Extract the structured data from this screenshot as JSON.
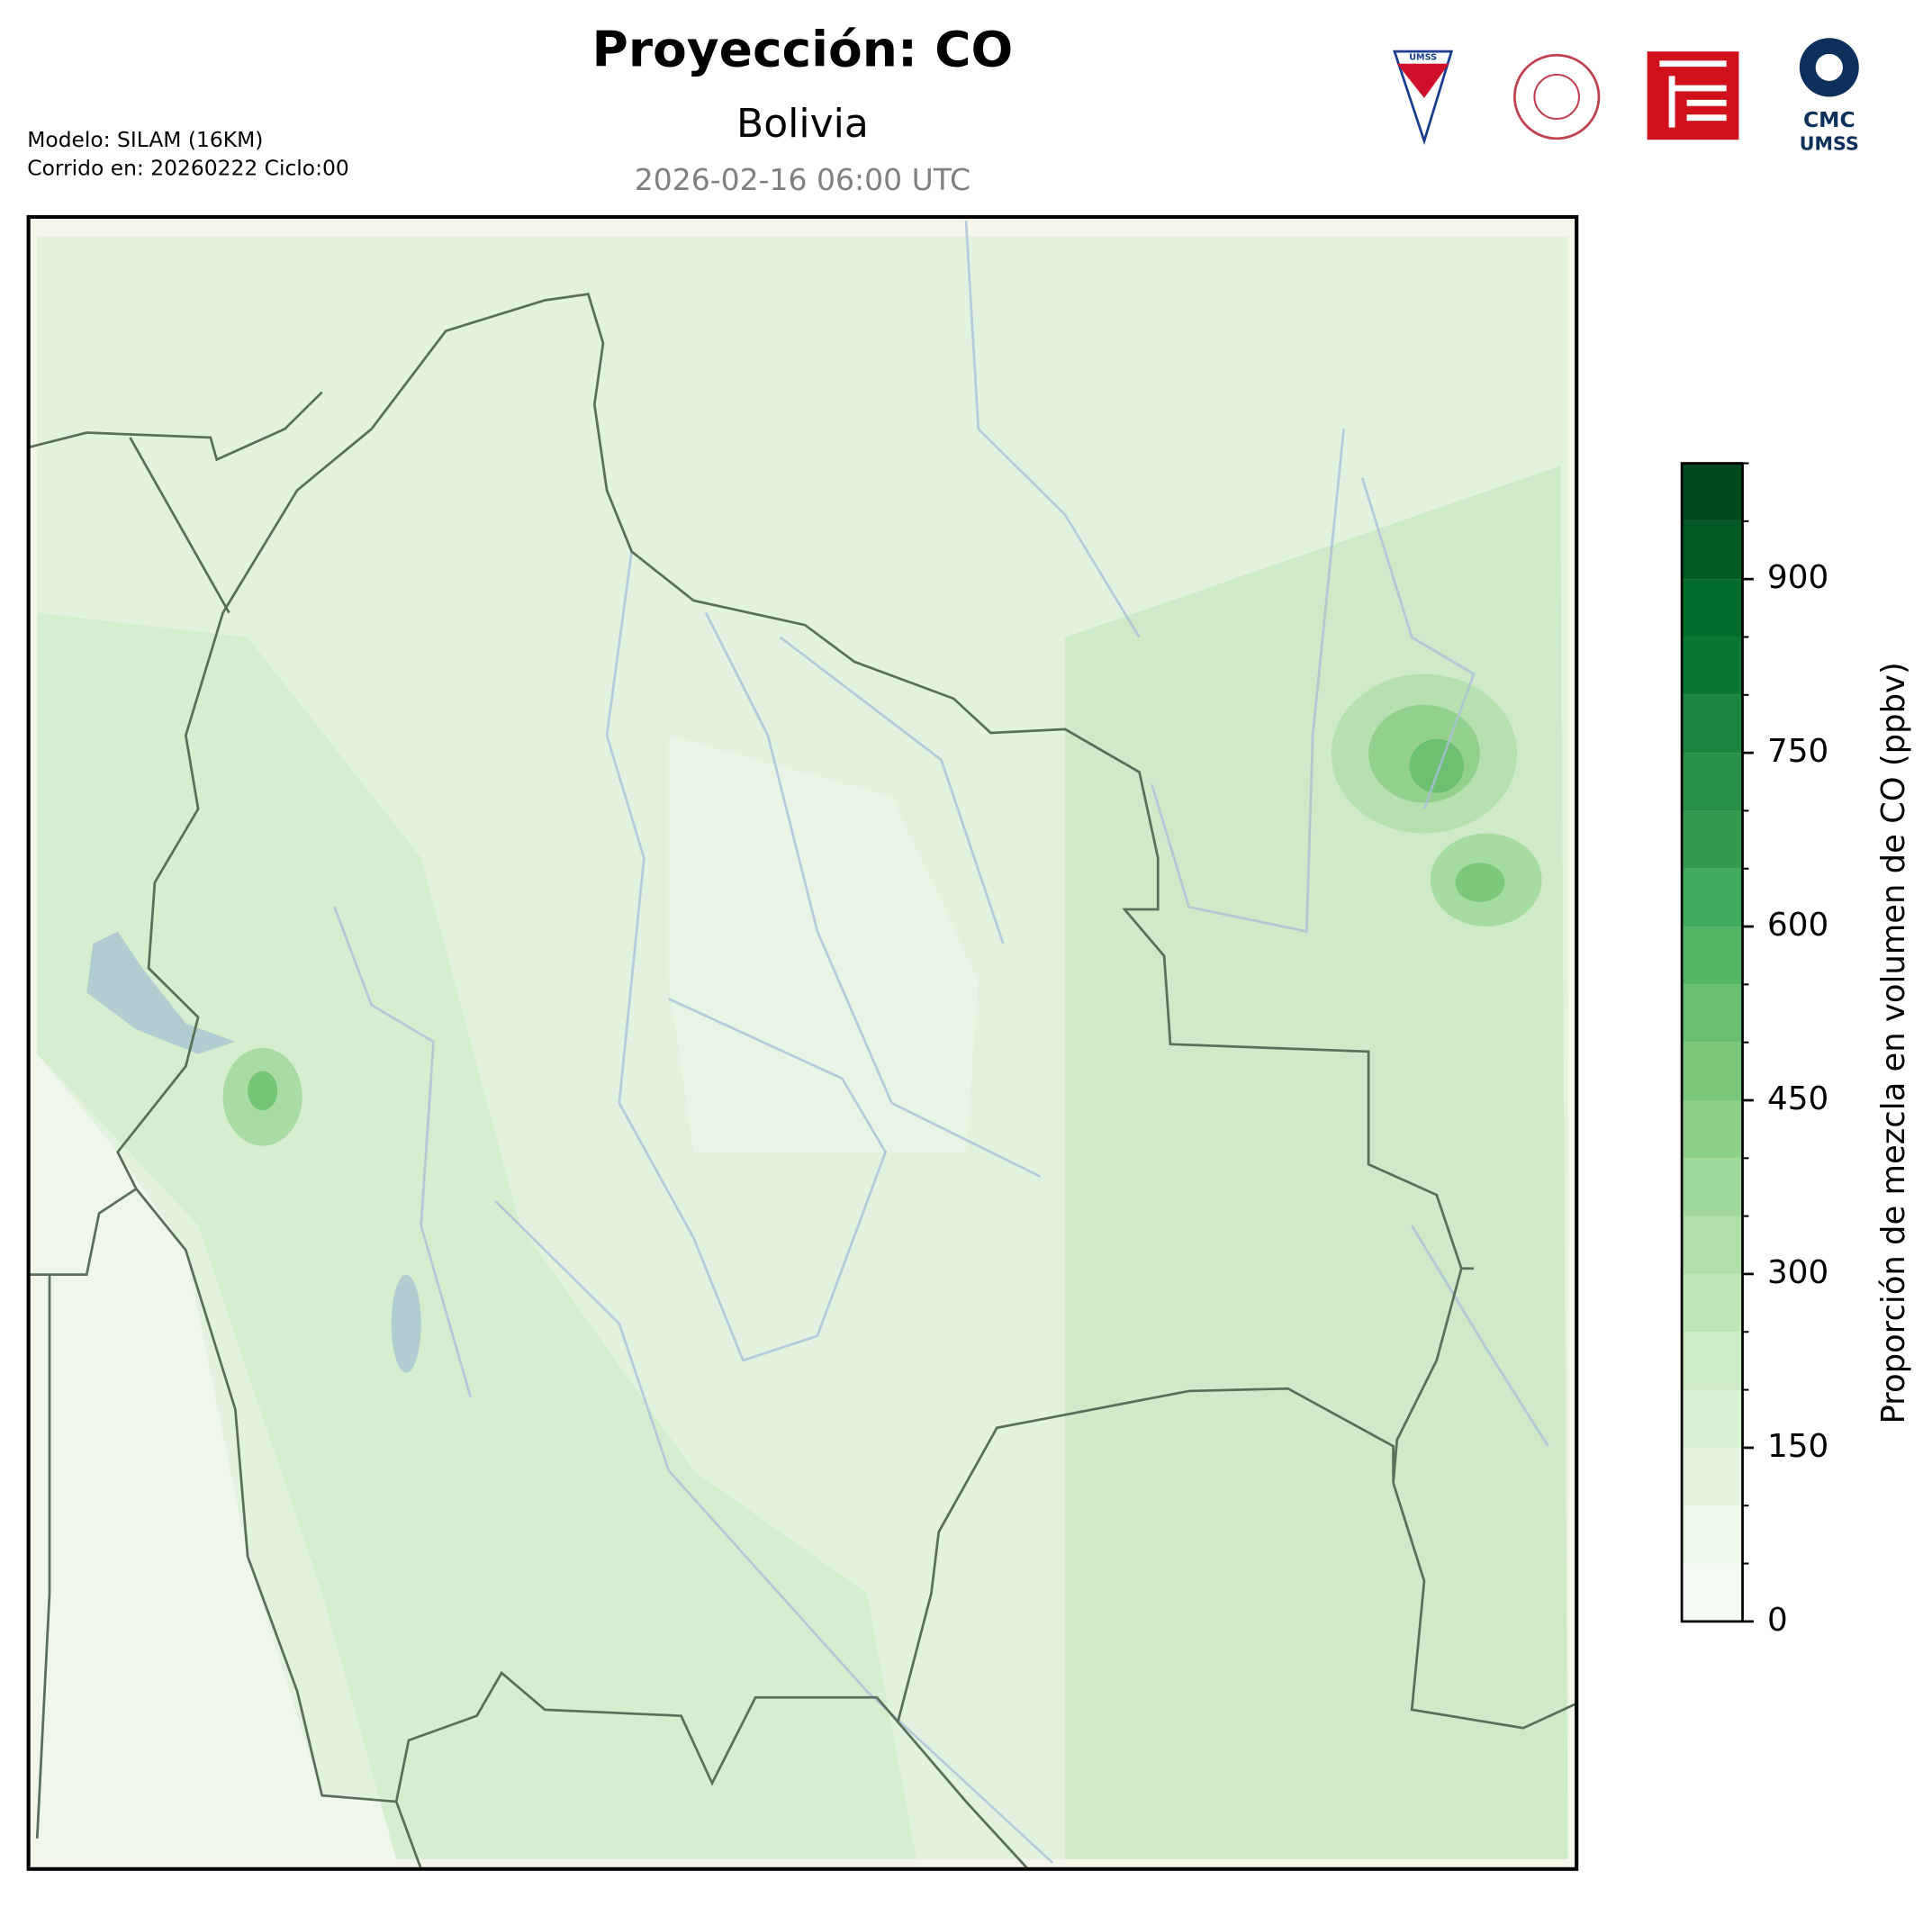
{
  "header": {
    "title": "Proyección: CO",
    "subtitle": "Bolivia",
    "date": "2026-02-16 06:00 UTC",
    "model": "Modelo: SILAM (16KM)",
    "run": "Corrido en: 20260222 Ciclo:00"
  },
  "logos": {
    "umss": "UMSS",
    "cmc": "CMC",
    "cmc_sub": "UMSS"
  },
  "colorbar": {
    "label": "Proporción de mezcla en volumen de CO (ppbv)",
    "lim": [
      0,
      1000
    ],
    "ticks": [
      0,
      150,
      300,
      450,
      600,
      750,
      900
    ],
    "levels": [
      0,
      50,
      100,
      150,
      200,
      250,
      300,
      350,
      400,
      450,
      500,
      550,
      600,
      650,
      700,
      750,
      800,
      850,
      900,
      950,
      1000
    ],
    "colors": [
      "#f4fbf2",
      "#ecf8e8",
      "#e5f5e0",
      "#d9f0d3",
      "#cdebc6",
      "#bfe5b8",
      "#b0dfaa",
      "#a1d99b",
      "#8ecf89",
      "#7bc77c",
      "#69be71",
      "#55b567",
      "#41ab5d",
      "#34994f",
      "#288f48",
      "#1c8540",
      "#0b7734",
      "#006d2c",
      "#005a24",
      "#00481d"
    ]
  }
}
